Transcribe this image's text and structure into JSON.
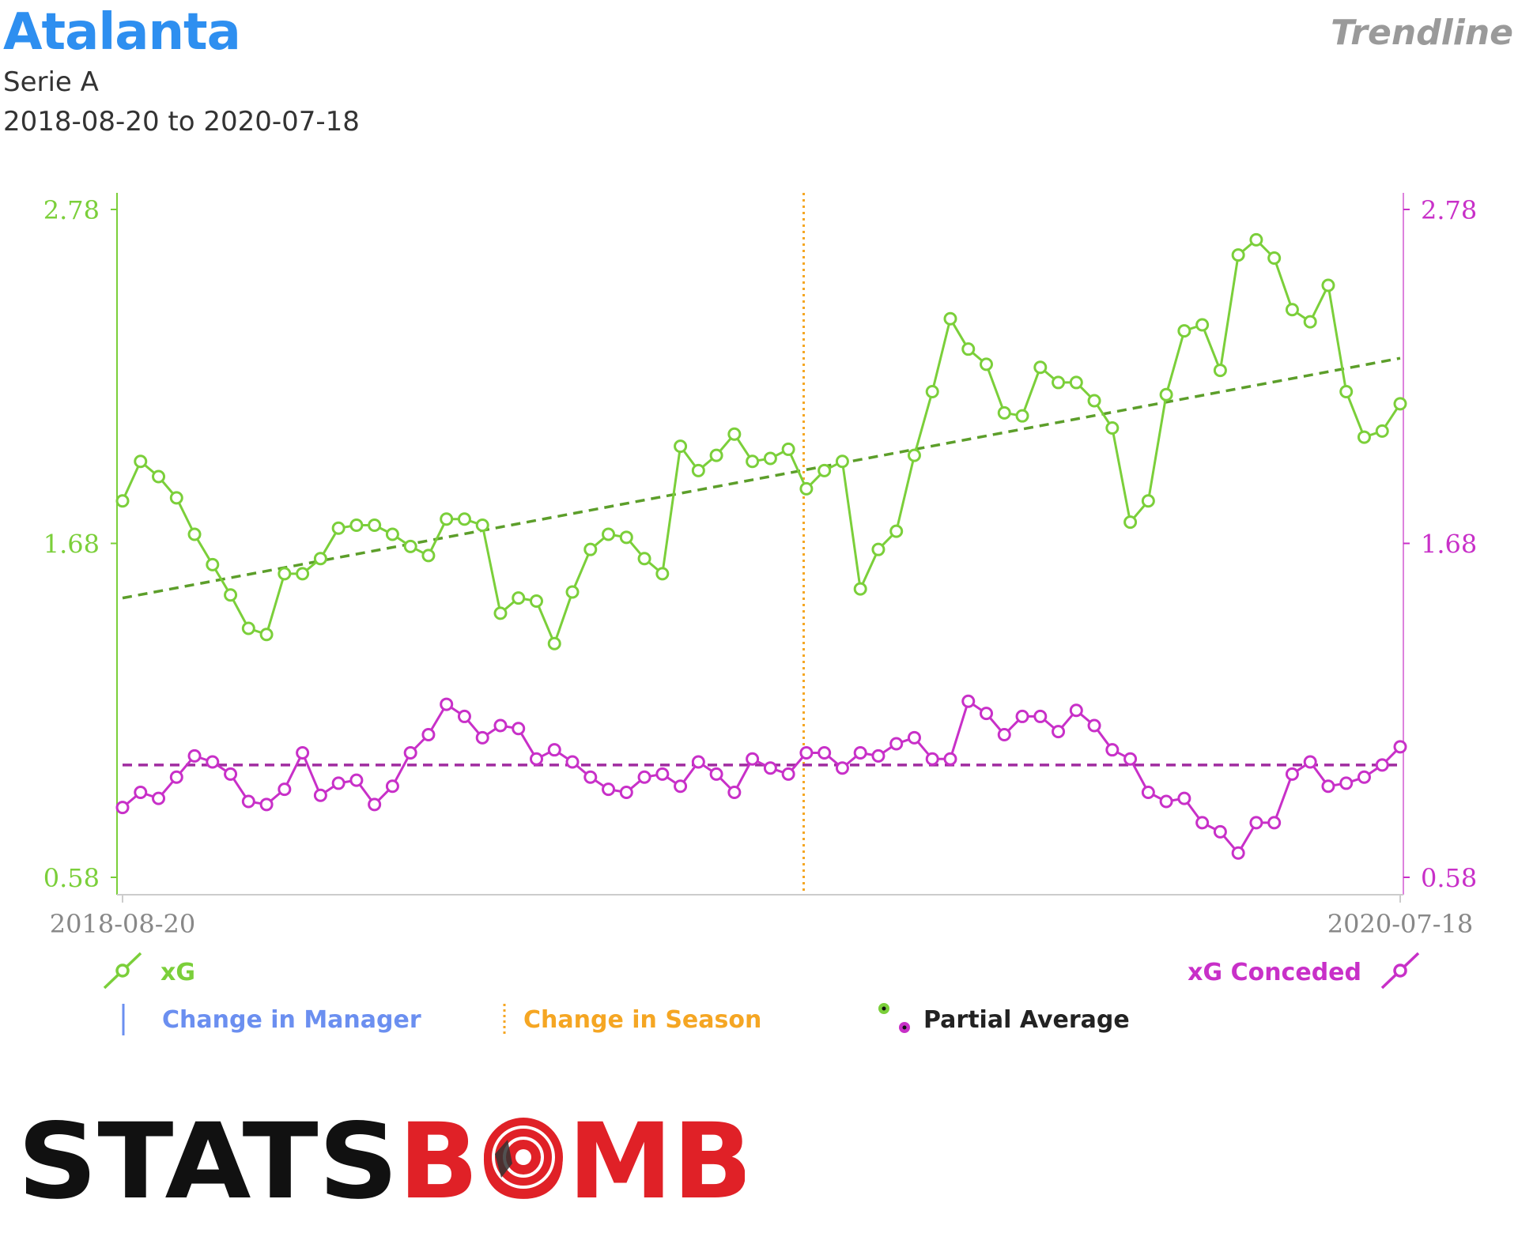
{
  "header": {
    "team": "Atalanta",
    "chart_kind": "Trendline",
    "competition": "Serie A",
    "date_range": "2018-08-20 to 2020-07-18"
  },
  "legend": {
    "xg": "xG",
    "xg_conceded": "xG Conceded",
    "manager_change": "Change in Manager",
    "season_change": "Change in Season",
    "partial_average": "Partial Average"
  },
  "logo": {
    "text_black": "STATS",
    "text_red": "BOMB"
  },
  "colors": {
    "xg": "#7bcf3a",
    "xg_trend": "#5c9e2a",
    "xg_conceded": "#c830c8",
    "xg_conceded_trend": "#a02ca0",
    "season_change": "#f5a623",
    "manager_change": "#6b8ff0",
    "axis": "#cccccc",
    "logo_black": "#111111",
    "logo_red": "#e02127"
  },
  "chart_data": {
    "type": "line",
    "title": "",
    "x_start": "2018-08-20",
    "x_end": "2020-07-18",
    "y_ticks": [
      0.58,
      1.68,
      2.78
    ],
    "ylim": [
      0.58,
      2.78
    ],
    "season_change_index": 38,
    "series": [
      {
        "name": "xG",
        "axis": "left",
        "values": [
          1.82,
          1.95,
          1.9,
          1.83,
          1.71,
          1.61,
          1.51,
          1.4,
          1.38,
          1.58,
          1.58,
          1.63,
          1.73,
          1.74,
          1.74,
          1.71,
          1.67,
          1.64,
          1.76,
          1.76,
          1.74,
          1.45,
          1.5,
          1.49,
          1.35,
          1.52,
          1.66,
          1.71,
          1.7,
          1.63,
          1.58,
          2.0,
          1.92,
          1.97,
          2.04,
          1.95,
          1.96,
          1.99,
          1.86,
          1.92,
          1.95,
          1.53,
          1.66,
          1.72,
          1.97,
          2.18,
          2.42,
          2.32,
          2.27,
          2.11,
          2.1,
          2.26,
          2.21,
          2.21,
          2.15,
          2.06,
          1.75,
          1.82,
          2.17,
          2.38,
          2.4,
          2.25,
          2.63,
          2.68,
          2.62,
          2.45,
          2.41,
          2.53,
          2.18,
          2.03,
          2.05,
          2.14
        ],
        "trend": [
          1.5,
          2.29
        ]
      },
      {
        "name": "xG Conceded",
        "axis": "right",
        "values": [
          0.81,
          0.86,
          0.84,
          0.91,
          0.98,
          0.96,
          0.92,
          0.83,
          0.82,
          0.87,
          0.99,
          0.85,
          0.89,
          0.9,
          0.82,
          0.88,
          0.99,
          1.05,
          1.15,
          1.11,
          1.04,
          1.08,
          1.07,
          0.97,
          1.0,
          0.96,
          0.91,
          0.87,
          0.86,
          0.91,
          0.92,
          0.88,
          0.96,
          0.92,
          0.86,
          0.97,
          0.94,
          0.92,
          0.99,
          0.99,
          0.94,
          0.99,
          0.98,
          1.02,
          1.04,
          0.97,
          0.97,
          1.16,
          1.12,
          1.05,
          1.11,
          1.11,
          1.06,
          1.13,
          1.08,
          1.0,
          0.97,
          0.86,
          0.83,
          0.84,
          0.76,
          0.73,
          0.66,
          0.76,
          0.76,
          0.92,
          0.96,
          0.88,
          0.89,
          0.91,
          0.95,
          1.01
        ],
        "trend": [
          0.95,
          0.95
        ]
      }
    ]
  }
}
